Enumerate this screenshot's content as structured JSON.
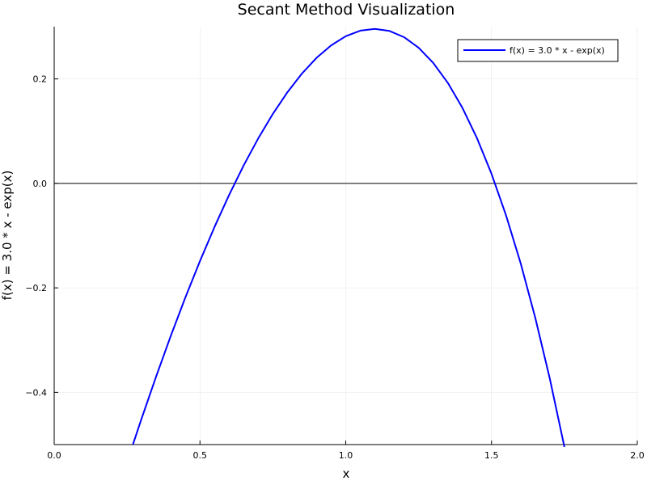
{
  "chart_data": {
    "type": "line",
    "title": "Secant Method Visualization",
    "xlabel": "x",
    "ylabel": "f(x) = 3.0 * x - exp(x)",
    "xlim": [
      0.0,
      2.0
    ],
    "ylim": [
      -0.5,
      0.3
    ],
    "x_ticks": [
      0.0,
      0.5,
      1.0,
      1.5,
      2.0
    ],
    "x_tick_labels": [
      "0.0",
      "0.5",
      "1.0",
      "1.5",
      "2.0"
    ],
    "y_ticks": [
      -0.4,
      -0.2,
      0.0,
      0.2
    ],
    "y_tick_labels": [
      "−0.4",
      "−0.2",
      "0.0",
      "0.2"
    ],
    "grid": true,
    "legend_position": "top-right",
    "reference_lines": [
      {
        "orientation": "horizontal",
        "y": 0.0,
        "color": "#000000"
      }
    ],
    "series": [
      {
        "name": "f(x) = 3.0 * x - exp(x)",
        "color": "#0000ff",
        "x": [
          0.27,
          0.3,
          0.35,
          0.4,
          0.45,
          0.5,
          0.55,
          0.6,
          0.65,
          0.7,
          0.75,
          0.8,
          0.85,
          0.9,
          0.95,
          1.0,
          1.05,
          1.1,
          1.15,
          1.2,
          1.25,
          1.3,
          1.35,
          1.4,
          1.45,
          1.5,
          1.55,
          1.6,
          1.65,
          1.7,
          1.75
        ],
        "y": [
          -0.4999,
          -0.4499,
          -0.3691,
          -0.2918,
          -0.2183,
          -0.1487,
          -0.0833,
          -0.0221,
          0.0345,
          0.0862,
          0.133,
          0.1745,
          0.2104,
          0.2404,
          0.2642,
          0.2817,
          0.2924,
          0.2958,
          0.2918,
          0.2799,
          0.2597,
          0.2307,
          0.1926,
          0.1448,
          0.0868,
          0.0183,
          -0.0615,
          -0.153,
          -0.2571,
          -0.3739,
          -0.5046
        ]
      }
    ]
  }
}
